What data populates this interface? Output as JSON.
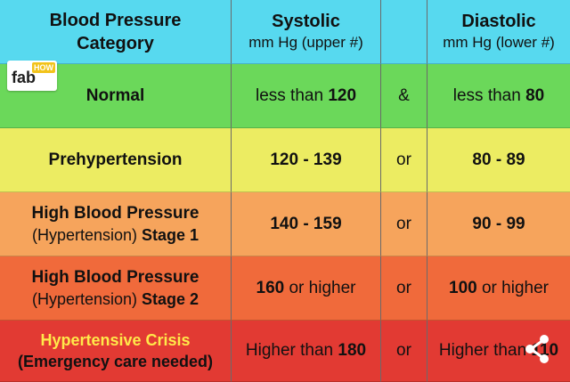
{
  "header": {
    "category_line1": "Blood Pressure",
    "category_line2": "Category",
    "systolic_title": "Systolic",
    "systolic_sub": "mm Hg (upper #)",
    "diastolic_title": "Diastolic",
    "diastolic_sub": "mm Hg (lower #)"
  },
  "logo": {
    "fab": "fab",
    "how": "HOW"
  },
  "rows": [
    {
      "category": "Normal",
      "systolic_pre": "less than ",
      "systolic_bold": "120",
      "connector": "&",
      "diastolic_pre": "less than ",
      "diastolic_bold": "80",
      "color": "#6bd85a"
    },
    {
      "category": "Prehypertension",
      "systolic_bold": "120 - 139",
      "connector": "or",
      "diastolic_bold": "80 - 89",
      "color": "#ecec62"
    },
    {
      "category": "High Blood Pressure",
      "category_sub_plain": "(Hypertension) ",
      "category_sub_bold": "Stage 1",
      "systolic_bold": "140 - 159",
      "connector": "or",
      "diastolic_bold": "90 - 99",
      "color": "#f6a45c"
    },
    {
      "category": "High Blood Pressure",
      "category_sub_plain": "(Hypertension) ",
      "category_sub_bold": "Stage 2",
      "systolic_bold": "160",
      "systolic_post": " or higher",
      "connector": "or",
      "diastolic_bold": "100",
      "diastolic_post": " or higher",
      "color": "#f06a3b"
    },
    {
      "category": "Hypertensive Crisis",
      "category_sub": "(Emergency care needed)",
      "systolic_pre": "Higher than ",
      "systolic_bold": "180",
      "connector": "or",
      "diastolic_pre": "Higher than ",
      "diastolic_bold": "110",
      "color": "#e23a33"
    }
  ],
  "icons": {
    "share": "share-icon",
    "logo": "fabhow-logo"
  }
}
